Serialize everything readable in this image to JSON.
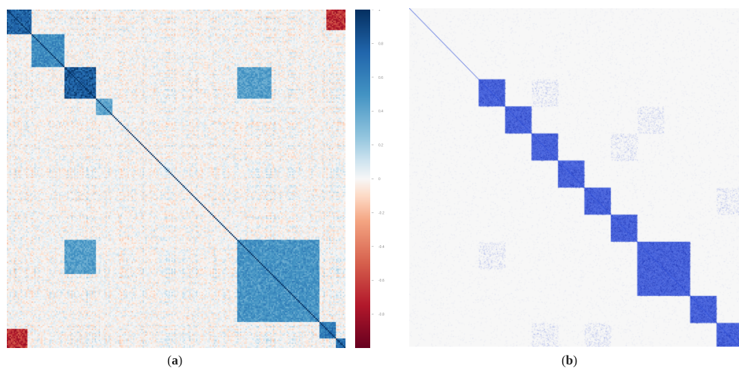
{
  "captions": {
    "a": "(a)",
    "b": "(b)"
  },
  "chart_data": [
    {
      "type": "heatmap",
      "panel": "(a)",
      "title": "",
      "colormap": "RdBu",
      "colors": {
        "low": "#67001f",
        "mid": "#f7f7f7",
        "high": "#053061"
      },
      "colorbar": {
        "range": [
          -1,
          1
        ],
        "ticks": [
          "1",
          "0.8",
          "0.6",
          "0.4",
          "0.2",
          "0",
          "-0.2",
          "-0.4",
          "-0.6",
          "-0.8"
        ]
      },
      "diagonal_value": 1,
      "positive_blocks": [
        {
          "from": 0.0,
          "to": 0.07,
          "value": 0.85
        },
        {
          "from": 0.07,
          "to": 0.17,
          "value": 0.6
        },
        {
          "from": 0.17,
          "to": 0.26,
          "value": 0.9
        },
        {
          "from": 0.26,
          "to": 0.31,
          "value": 0.45
        },
        {
          "from": 0.68,
          "to": 0.92,
          "value": 0.55
        },
        {
          "from": 0.92,
          "to": 0.97,
          "value": 0.7
        },
        {
          "from": 0.97,
          "to": 1.0,
          "value": 0.8
        }
      ],
      "notable_off_diagonal": [
        {
          "rows": [
            0.0,
            0.06
          ],
          "cols": [
            0.94,
            1.0
          ],
          "value": -0.85
        },
        {
          "rows": [
            0.94,
            1.0
          ],
          "cols": [
            0.0,
            0.06
          ],
          "value": -0.85
        },
        {
          "rows": [
            0.17,
            0.26
          ],
          "cols": [
            0.68,
            0.78
          ],
          "value": 0.55
        },
        {
          "rows": [
            0.68,
            0.78
          ],
          "cols": [
            0.17,
            0.26
          ],
          "value": 0.55
        }
      ]
    },
    {
      "type": "heatmap",
      "panel": "(b)",
      "title": "",
      "colors": {
        "block": "#2a4bd8",
        "background": "#f7f7f7"
      },
      "diagonal_value": 1,
      "blocks": [
        {
          "from": 0.21,
          "to": 0.29
        },
        {
          "from": 0.29,
          "to": 0.37
        },
        {
          "from": 0.37,
          "to": 0.45
        },
        {
          "from": 0.45,
          "to": 0.53
        },
        {
          "from": 0.53,
          "to": 0.61
        },
        {
          "from": 0.61,
          "to": 0.69
        },
        {
          "from": 0.69,
          "to": 0.85
        },
        {
          "from": 0.85,
          "to": 0.93
        },
        {
          "from": 0.93,
          "to": 1.0
        }
      ]
    }
  ]
}
